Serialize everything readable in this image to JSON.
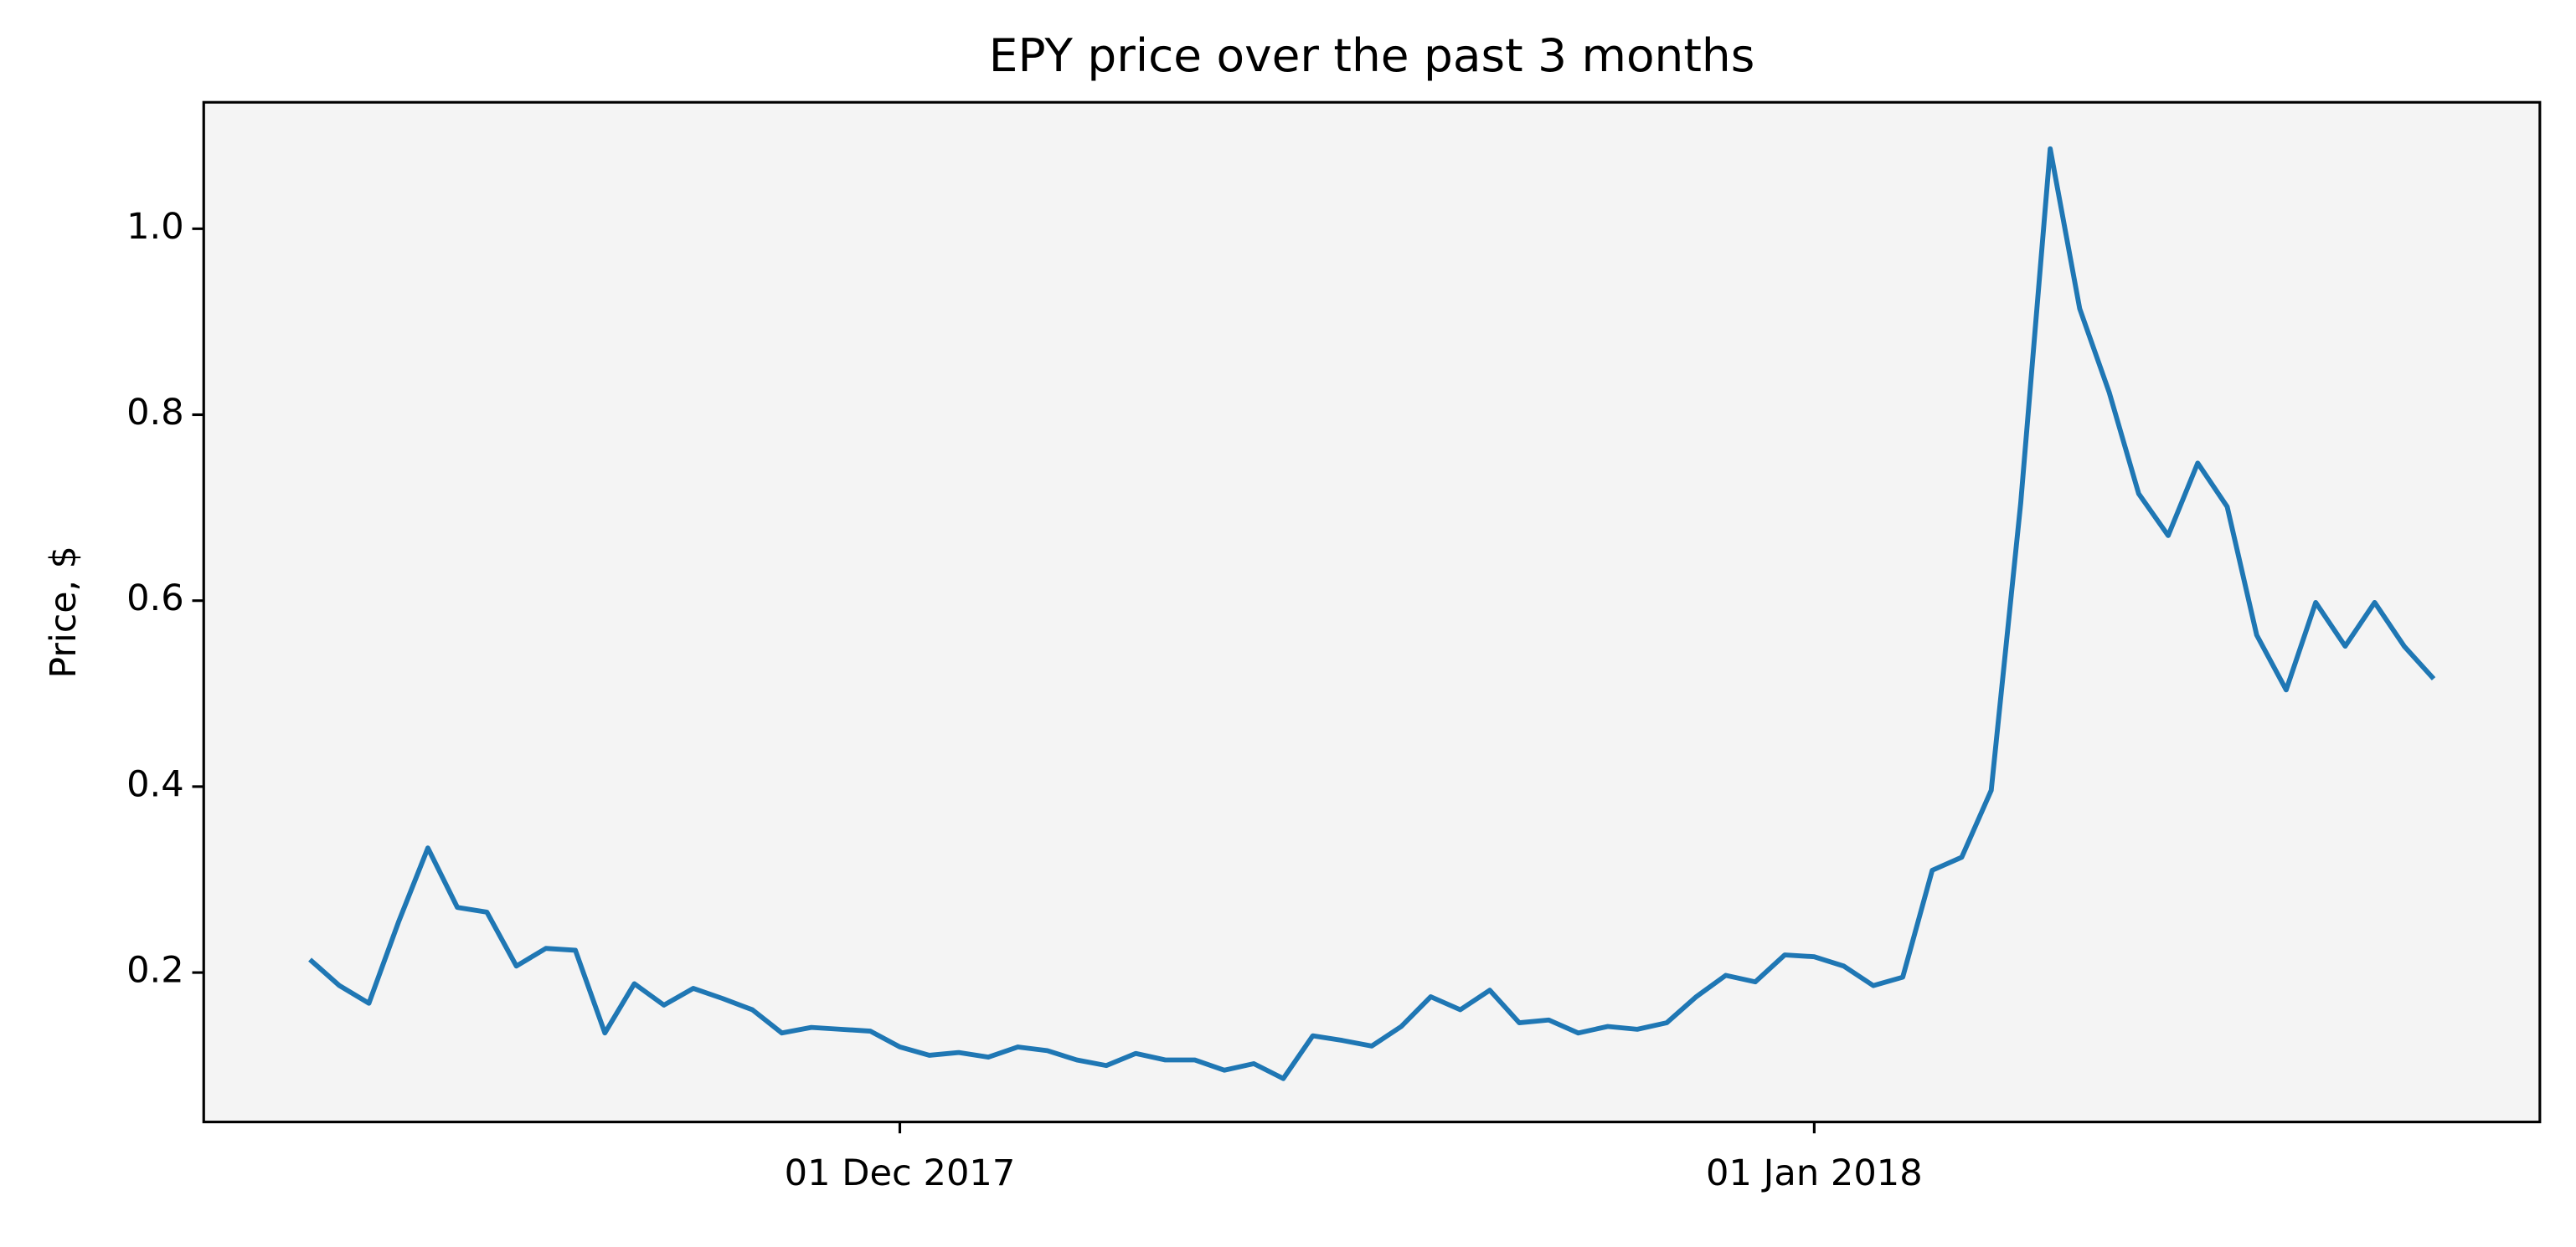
{
  "chart_data": {
    "type": "line",
    "title": "EPY price over the past 3 months",
    "ylabel": "Price, $",
    "x": [
      "2017-11-11",
      "2017-11-12",
      "2017-11-13",
      "2017-11-14",
      "2017-11-15",
      "2017-11-16",
      "2017-11-17",
      "2017-11-18",
      "2017-11-19",
      "2017-11-20",
      "2017-11-21",
      "2017-11-22",
      "2017-11-23",
      "2017-11-24",
      "2017-11-25",
      "2017-11-26",
      "2017-11-27",
      "2017-11-28",
      "2017-11-29",
      "2017-11-30",
      "2017-12-01",
      "2017-12-02",
      "2017-12-03",
      "2017-12-04",
      "2017-12-05",
      "2017-12-06",
      "2017-12-07",
      "2017-12-08",
      "2017-12-09",
      "2017-12-10",
      "2017-12-11",
      "2017-12-12",
      "2017-12-13",
      "2017-12-14",
      "2017-12-15",
      "2017-12-16",
      "2017-12-17",
      "2017-12-18",
      "2017-12-19",
      "2017-12-20",
      "2017-12-21",
      "2017-12-22",
      "2017-12-23",
      "2017-12-24",
      "2017-12-25",
      "2017-12-26",
      "2017-12-27",
      "2017-12-28",
      "2017-12-29",
      "2017-12-30",
      "2017-12-31",
      "2018-01-01",
      "2018-01-02",
      "2018-01-03",
      "2018-01-04",
      "2018-01-05",
      "2018-01-06",
      "2018-01-07",
      "2018-01-08",
      "2018-01-09",
      "2018-01-10",
      "2018-01-11",
      "2018-01-12",
      "2018-01-13",
      "2018-01-14",
      "2018-01-15",
      "2018-01-16",
      "2018-01-17",
      "2018-01-18",
      "2018-01-19",
      "2018-01-20",
      "2018-01-21",
      "2018-01-22"
    ],
    "values": [
      0.214,
      0.186,
      0.167,
      0.254,
      0.334,
      0.27,
      0.265,
      0.207,
      0.226,
      0.224,
      0.135,
      0.188,
      0.165,
      0.183,
      0.172,
      0.16,
      0.135,
      0.141,
      0.139,
      0.137,
      0.12,
      0.111,
      0.114,
      0.109,
      0.12,
      0.116,
      0.106,
      0.1,
      0.113,
      0.106,
      0.106,
      0.095,
      0.102,
      0.086,
      0.132,
      0.127,
      0.121,
      0.142,
      0.174,
      0.16,
      0.181,
      0.146,
      0.149,
      0.135,
      0.142,
      0.139,
      0.146,
      0.174,
      0.197,
      0.19,
      0.219,
      0.217,
      0.207,
      0.186,
      0.195,
      0.31,
      0.324,
      0.396,
      0.705,
      1.086,
      0.914,
      0.824,
      0.715,
      0.67,
      0.748,
      0.701,
      0.563,
      0.504,
      0.598,
      0.551,
      0.598,
      0.551,
      0.516
    ],
    "color": "#1f77b4",
    "background": "#f4f4f4",
    "xlim": [
      "2017-11-07T09:36",
      "2018-01-25T14:24"
    ],
    "xticks": [
      {
        "value": "2017-12-01",
        "label": "01 Dec 2017"
      },
      {
        "value": "2018-01-01",
        "label": "01 Jan 2018"
      }
    ],
    "ylim": [
      0.0393,
      1.136
    ],
    "yticks": [
      0.2,
      0.4,
      0.6,
      0.8,
      {
        "value": 1,
        "label": "1.0"
      }
    ],
    "grid": false
  }
}
